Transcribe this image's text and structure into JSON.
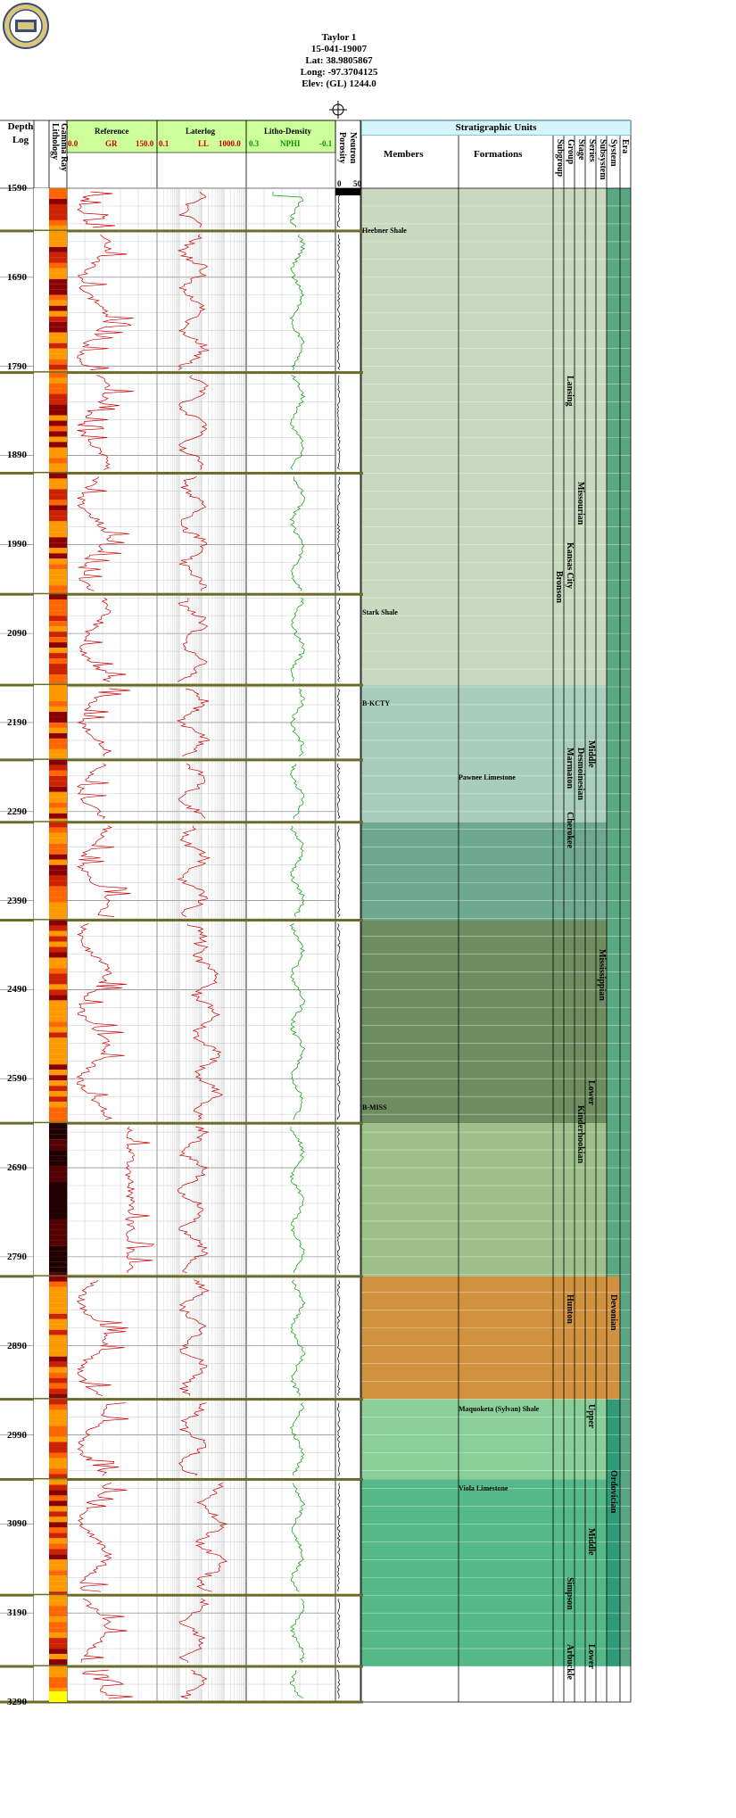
{
  "well": {
    "name": "Taylor 1",
    "api": "15-041-19007",
    "lat": "Lat: 38.9805867",
    "long": "Long: -97.3704125",
    "elev": "Elev: (GL) 1244.0"
  },
  "columns": {
    "depth_title": "Depth",
    "log_title": "Log",
    "lithology": "Lithology",
    "gamma_ray": "Gamma Ray",
    "reference": "Reference",
    "gr_label": "GR",
    "gr_min": "0.0",
    "gr_max": "150.0",
    "laterolog": "Laterlog",
    "ll_label": "LL",
    "ll_min": "0.1",
    "ll_max": "1000.0",
    "litho_density": "Litho-Density",
    "nphi_label": "NPHI",
    "nphi_min": "0.3",
    "nphi_max": "-0.1",
    "porosity": "Porosity",
    "neutron": "Neutron",
    "por_min": "0",
    "por_max": "50",
    "strat_units": "Stratigraphic Units",
    "members": "Members",
    "formations": "Formations",
    "subgroup": "Subgroup",
    "group": "Group",
    "stage": "Stage",
    "series": "Series",
    "subsystem": "Subsystem",
    "system": "System",
    "era": "Era"
  },
  "depth_labels": [
    "1590",
    "1690",
    "1790",
    "1890",
    "1990",
    "2090",
    "2190",
    "2290",
    "2390",
    "2490",
    "2590",
    "2690",
    "2790",
    "2890",
    "2990",
    "3090",
    "3190",
    "3290"
  ],
  "members": [
    {
      "name": "Heebner Shale",
      "depth": 1637
    },
    {
      "name": "Stark Shale",
      "depth": 2066
    },
    {
      "name": "B-KCTY",
      "depth": 2168
    },
    {
      "name": "B-MISS",
      "depth": 2622
    }
  ],
  "formations": [
    {
      "name": "Pawnee Limestone",
      "depth": 2251
    },
    {
      "name": "Maquoketa (Sylvan) Shale",
      "depth": 2960
    },
    {
      "name": "Viola Limestone",
      "depth": 3050
    }
  ],
  "units": [
    {
      "name": "Bronson",
      "depth": 2050,
      "col": "subgroup"
    },
    {
      "name": "Lansing",
      "depth": 1830,
      "col": "group"
    },
    {
      "name": "Kansas City",
      "depth": 2018,
      "col": "group"
    },
    {
      "name": "Marmaton",
      "depth": 2248,
      "col": "group"
    },
    {
      "name": "Cherokee",
      "depth": 2320,
      "col": "group"
    },
    {
      "name": "Kinderhookian",
      "depth": 2650,
      "col": "stage"
    },
    {
      "name": "Hunton",
      "depth": 2862,
      "col": "group"
    },
    {
      "name": "Simpson",
      "depth": 3180,
      "col": "group"
    },
    {
      "name": "Arbuckle",
      "depth": 3255,
      "col": "group"
    },
    {
      "name": "Missourian",
      "depth": 1950,
      "col": "stage"
    },
    {
      "name": "Desmoinesian",
      "depth": 2248,
      "col": "stage"
    },
    {
      "name": "Middle",
      "depth": 2240,
      "col": "series"
    },
    {
      "name": "Lower",
      "depth": 2622,
      "col": "series"
    },
    {
      "name": "Upper",
      "depth": 2985,
      "col": "series"
    },
    {
      "name": "Middle",
      "depth": 3125,
      "col": "series"
    },
    {
      "name": "Lower",
      "depth": 3255,
      "col": "series"
    },
    {
      "name": "Mississippian",
      "depth": 2475,
      "col": "subsystem"
    },
    {
      "name": "Devonian",
      "depth": 2862,
      "col": "system"
    },
    {
      "name": "Ordovician",
      "depth": 3060,
      "col": "system"
    }
  ],
  "colors": {
    "gr_curve": "#cc0000",
    "nphi_curve": "#009900",
    "pennsylvanian_fill": "#c9d9bf",
    "desmoinesian_fill": "#a9cdbd",
    "cherokee_fill": "#6fa891",
    "mississippian_fill": "#6e8e62",
    "kinderhookian_fill": "#9dc08a",
    "devonian_fill": "#d1923f",
    "ordovician_upper_fill": "#8acf9a",
    "ordovician_middle_fill": "#55b888",
    "header_green": "#ccff99",
    "header_cyan": "#d8f4fb"
  },
  "chart_data": {
    "type": "line",
    "depth_range": [
      1590,
      3290
    ],
    "core_breaks": [
      1590,
      1638,
      1797,
      1910,
      2046,
      2148,
      2232,
      2302,
      2412,
      2640,
      2812,
      2950,
      3040,
      3170,
      3250,
      3290
    ],
    "gr_scale": [
      0,
      150
    ],
    "ll_scale": [
      0.1,
      1000
    ],
    "nphi_scale": [
      0.3,
      -0.1
    ],
    "porosity_scale": [
      0,
      50
    ]
  }
}
